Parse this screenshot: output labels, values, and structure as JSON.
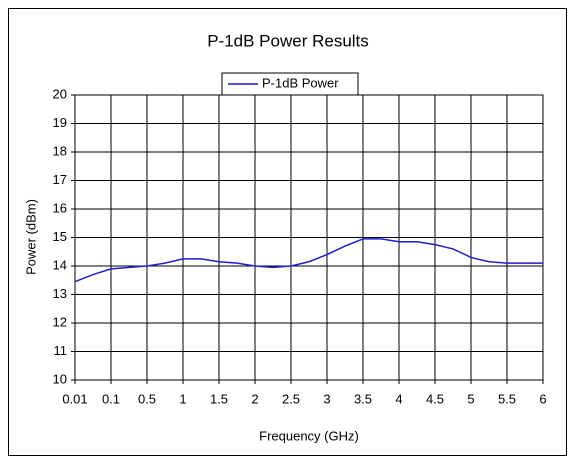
{
  "chart_data": {
    "type": "line",
    "title": "P-1dB Power Results",
    "x_label": "Frequency (GHz)",
    "y_label": "Power (dBm)",
    "categories": [
      "0.01",
      null,
      "0.1",
      null,
      "0.5",
      null,
      "1",
      null,
      "1.5",
      null,
      "2",
      null,
      "2.5",
      null,
      "3",
      null,
      "3.5",
      null,
      "4",
      null,
      "4.5",
      null,
      "5",
      null,
      "5.5",
      null,
      "6"
    ],
    "series": [
      {
        "name": "P-1dB Power",
        "color": "#1f1fd0",
        "values": [
          13.45,
          13.7,
          13.9,
          13.95,
          14.0,
          14.1,
          14.25,
          14.25,
          14.15,
          14.1,
          14.0,
          13.95,
          14.0,
          14.15,
          14.4,
          14.7,
          14.95,
          14.95,
          14.85,
          14.85,
          14.75,
          14.6,
          14.3,
          14.15,
          14.1,
          14.1,
          14.1
        ]
      }
    ],
    "ylim": [
      10,
      20
    ],
    "yticks": [
      10,
      11,
      12,
      13,
      14,
      15,
      16,
      17,
      18,
      19,
      20
    ],
    "grid": true,
    "legend": "top"
  }
}
